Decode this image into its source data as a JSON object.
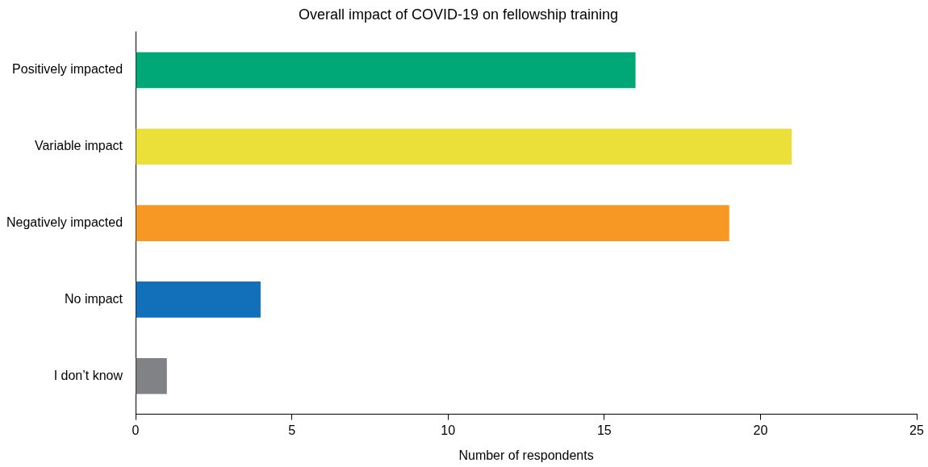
{
  "chart_data": {
    "type": "bar",
    "orientation": "horizontal",
    "title": "Overall impact of COVID-19 on fellowship training",
    "xlabel": "Number of respondents",
    "categories": [
      "Positively impacted",
      "Variable impact",
      "Negatively impacted",
      "No impact",
      "I don’t know"
    ],
    "values": [
      16,
      21,
      19,
      4,
      1
    ],
    "colors": [
      "#00a878",
      "#ebe03a",
      "#f79824",
      "#1170b9",
      "#808285"
    ],
    "xlim": [
      0,
      25
    ],
    "xticks": [
      0,
      5,
      10,
      15,
      20,
      25
    ]
  }
}
